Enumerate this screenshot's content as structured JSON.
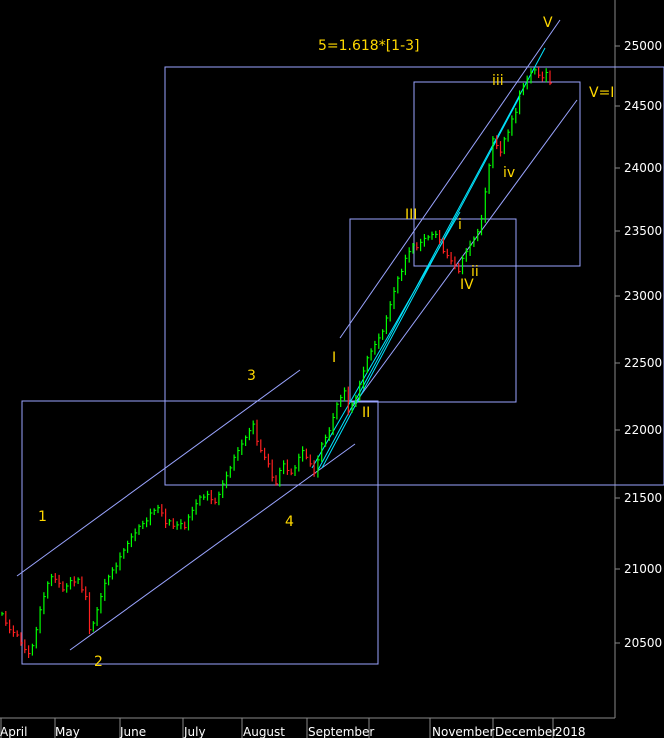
{
  "chart_data": {
    "type": "candlestick",
    "title": "5=1.618*[1-3]",
    "y_axis": {
      "ticks": [
        "25000",
        "24500",
        "24000",
        "23500",
        "23000",
        "22500",
        "22000",
        "21500",
        "21000",
        "20500"
      ],
      "ylim": [
        20000,
        25300
      ]
    },
    "x_axis": {
      "labels": [
        "April",
        "May",
        "June",
        "July",
        "August",
        "September",
        "November",
        "December",
        "2018"
      ]
    },
    "wave_labels": [
      "1",
      "2",
      "3",
      "4",
      "I",
      "II",
      "III",
      "IV",
      "V=I",
      "i",
      "ii",
      "iii",
      "iv",
      "V"
    ],
    "colors": {
      "background": "#000000",
      "up_bar": "#00ff00",
      "down_bar": "#ff2020",
      "channel_line": "#9aa4ff",
      "trend_line": "#00e5ff",
      "label": "#ffd800",
      "axis_text": "#ffffff"
    },
    "series": [
      {
        "name": "",
        "points": [
          [
            0,
            20720
          ],
          [
            1,
            20650
          ],
          [
            2,
            20600
          ],
          [
            3,
            20580
          ],
          [
            4,
            20560
          ],
          [
            5,
            20500
          ],
          [
            6,
            20450
          ],
          [
            7,
            20420
          ],
          [
            8,
            20480
          ],
          [
            9,
            20600
          ],
          [
            10,
            20750
          ],
          [
            11,
            20850
          ],
          [
            12,
            20950
          ],
          [
            13,
            21000
          ],
          [
            14,
            20980
          ],
          [
            15,
            20950
          ],
          [
            16,
            20900
          ],
          [
            17,
            20930
          ],
          [
            18,
            20970
          ],
          [
            19,
            20960
          ],
          [
            20,
            20980
          ],
          [
            21,
            20900
          ],
          [
            22,
            20850
          ],
          [
            23,
            20600
          ],
          [
            24,
            20650
          ],
          [
            25,
            20750
          ],
          [
            26,
            20850
          ],
          [
            27,
            20950
          ],
          [
            28,
            21000
          ],
          [
            29,
            21050
          ],
          [
            30,
            21080
          ],
          [
            31,
            21150
          ],
          [
            32,
            21200
          ],
          [
            33,
            21250
          ],
          [
            34,
            21300
          ],
          [
            35,
            21330
          ],
          [
            36,
            21380
          ],
          [
            37,
            21400
          ],
          [
            38,
            21420
          ],
          [
            39,
            21480
          ],
          [
            40,
            21500
          ],
          [
            41,
            21520
          ],
          [
            42,
            21480
          ],
          [
            43,
            21400
          ],
          [
            44,
            21420
          ],
          [
            45,
            21380
          ],
          [
            46,
            21390
          ],
          [
            47,
            21400
          ],
          [
            48,
            21370
          ],
          [
            49,
            21450
          ],
          [
            50,
            21500
          ],
          [
            51,
            21550
          ],
          [
            52,
            21600
          ],
          [
            53,
            21600
          ],
          [
            54,
            21620
          ],
          [
            55,
            21580
          ],
          [
            56,
            21560
          ],
          [
            57,
            21620
          ],
          [
            58,
            21700
          ],
          [
            59,
            21760
          ],
          [
            60,
            21820
          ],
          [
            61,
            21900
          ],
          [
            62,
            21950
          ],
          [
            63,
            22000
          ],
          [
            64,
            22050
          ],
          [
            65,
            22100
          ],
          [
            66,
            22150
          ],
          [
            67,
            22020
          ],
          [
            68,
            21950
          ],
          [
            69,
            21900
          ],
          [
            70,
            21850
          ],
          [
            71,
            21750
          ],
          [
            72,
            21700
          ],
          [
            73,
            21800
          ],
          [
            74,
            21850
          ],
          [
            75,
            21800
          ],
          [
            76,
            21780
          ],
          [
            77,
            21820
          ],
          [
            78,
            21900
          ],
          [
            79,
            21950
          ],
          [
            80,
            21900
          ],
          [
            81,
            21850
          ],
          [
            82,
            21780
          ],
          [
            83,
            21880
          ],
          [
            84,
            22000
          ],
          [
            85,
            22050
          ],
          [
            86,
            22100
          ],
          [
            87,
            22200
          ],
          [
            88,
            22300
          ],
          [
            89,
            22350
          ],
          [
            90,
            22400
          ],
          [
            91,
            22250
          ],
          [
            92,
            22300
          ],
          [
            93,
            22350
          ],
          [
            94,
            22450
          ],
          [
            95,
            22550
          ],
          [
            96,
            22650
          ],
          [
            97,
            22700
          ],
          [
            98,
            22750
          ],
          [
            99,
            22800
          ],
          [
            100,
            22850
          ],
          [
            101,
            22950
          ],
          [
            102,
            23050
          ],
          [
            103,
            23150
          ],
          [
            104,
            23250
          ],
          [
            105,
            23300
          ],
          [
            106,
            23400
          ],
          [
            107,
            23450
          ],
          [
            108,
            23500
          ],
          [
            109,
            23480
          ],
          [
            110,
            23520
          ],
          [
            111,
            23550
          ],
          [
            112,
            23560
          ],
          [
            113,
            23580
          ],
          [
            114,
            23580
          ],
          [
            115,
            23540
          ],
          [
            116,
            23450
          ],
          [
            117,
            23420
          ],
          [
            118,
            23380
          ],
          [
            119,
            23350
          ],
          [
            120,
            23300
          ],
          [
            121,
            23400
          ],
          [
            122,
            23450
          ],
          [
            123,
            23500
          ],
          [
            124,
            23550
          ],
          [
            125,
            23600
          ],
          [
            126,
            23700
          ],
          [
            127,
            23900
          ],
          [
            128,
            24100
          ],
          [
            129,
            24300
          ],
          [
            130,
            24250
          ],
          [
            131,
            24200
          ],
          [
            132,
            24300
          ],
          [
            133,
            24350
          ],
          [
            134,
            24450
          ],
          [
            135,
            24500
          ],
          [
            136,
            24650
          ],
          [
            137,
            24700
          ],
          [
            138,
            24750
          ],
          [
            139,
            24800
          ],
          [
            140,
            24820
          ],
          [
            141,
            24780
          ],
          [
            142,
            24760
          ],
          [
            143,
            24800
          ],
          [
            144,
            24720
          ]
        ]
      }
    ]
  }
}
